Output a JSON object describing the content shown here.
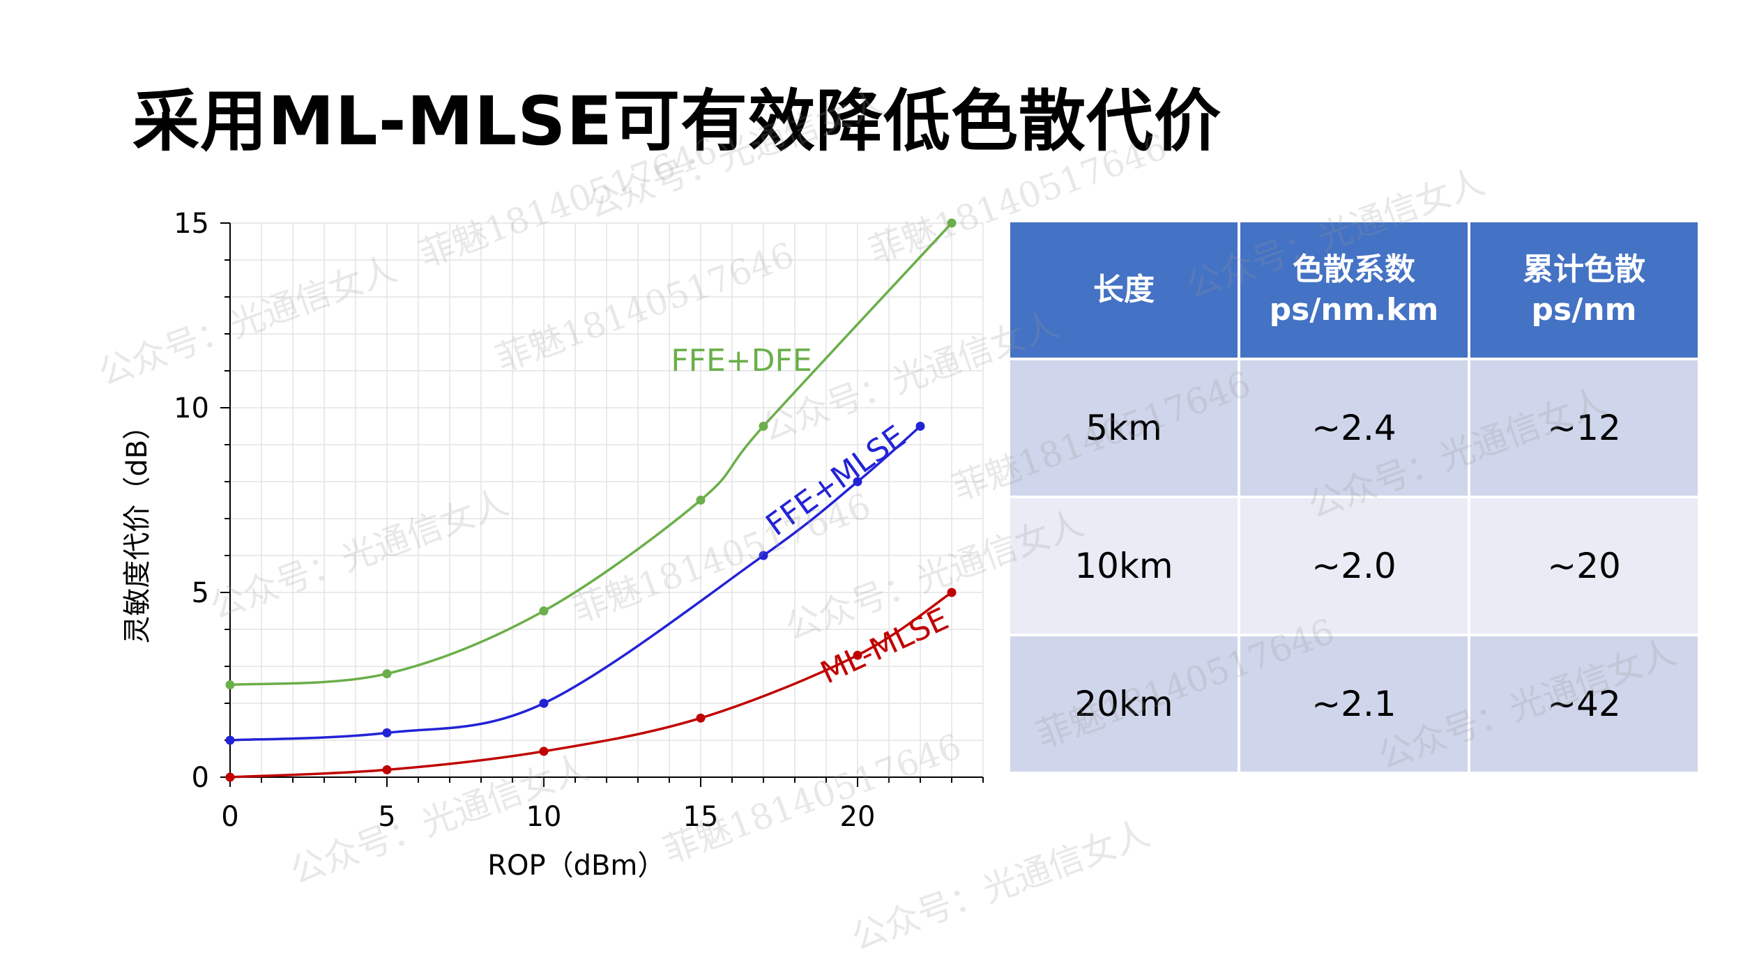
{
  "title": "采用ML-MLSE可有效降低色散代价",
  "colors": {
    "green": "#6aaf49",
    "blue": "#2323d6",
    "red": "#c00000",
    "header": "#4472c4",
    "row_dark": "#cfd5ea",
    "row_light": "#e9ebf5"
  },
  "chart_data": {
    "type": "line",
    "title": "",
    "xlabel": "ROP（dBm）",
    "ylabel": "灵敏度代价（dB）",
    "xlim": [
      0,
      24
    ],
    "ylim": [
      0,
      15
    ],
    "xticks": [
      0,
      5,
      10,
      15,
      20
    ],
    "yticks": [
      0,
      5,
      10,
      15
    ],
    "grid": true,
    "series": [
      {
        "name": "FFE+DFE",
        "color": "#6aaf49",
        "x": [
          0,
          5,
          10,
          15,
          17,
          23
        ],
        "y": [
          2.5,
          2.8,
          4.5,
          7.5,
          9.5,
          15.0
        ]
      },
      {
        "name": "FFE+MLSE",
        "color": "#2323d6",
        "x": [
          0,
          5,
          10,
          17,
          20,
          22
        ],
        "y": [
          1.0,
          1.2,
          2.0,
          6.0,
          8.0,
          9.5
        ]
      },
      {
        "name": "ML-MLSE",
        "color": "#c00000",
        "x": [
          0,
          5,
          10,
          15,
          20,
          23
        ],
        "y": [
          0.0,
          0.2,
          0.7,
          1.6,
          3.3,
          5.0
        ]
      }
    ]
  },
  "table": {
    "headers": [
      [
        "长度"
      ],
      [
        "色散系数",
        "ps/nm.km"
      ],
      [
        "累计色散",
        "ps/nm"
      ]
    ],
    "rows": [
      [
        "5km",
        "~2.4",
        "~12"
      ],
      [
        "10km",
        "~2.0",
        "~20"
      ],
      [
        "20km",
        "~2.1",
        "~42"
      ]
    ]
  },
  "watermarks": [
    "公众号：光通信女人",
    "菲魅18140517646",
    "公众号：光通信女人",
    "菲魅18140517646",
    "公众号：光通信女人",
    "公众号：光通信女人",
    "菲魅18140517646",
    "公众号：光通信女人",
    "菲魅18140517646",
    "公众号：光通信女人",
    "菲魅18140517646",
    "公众号：光通信女人",
    "菲魅18140517646",
    "公众号：光通信女人",
    "公众号：光通信女人",
    "菲魅18140517646",
    "公众号：光通信女人"
  ]
}
